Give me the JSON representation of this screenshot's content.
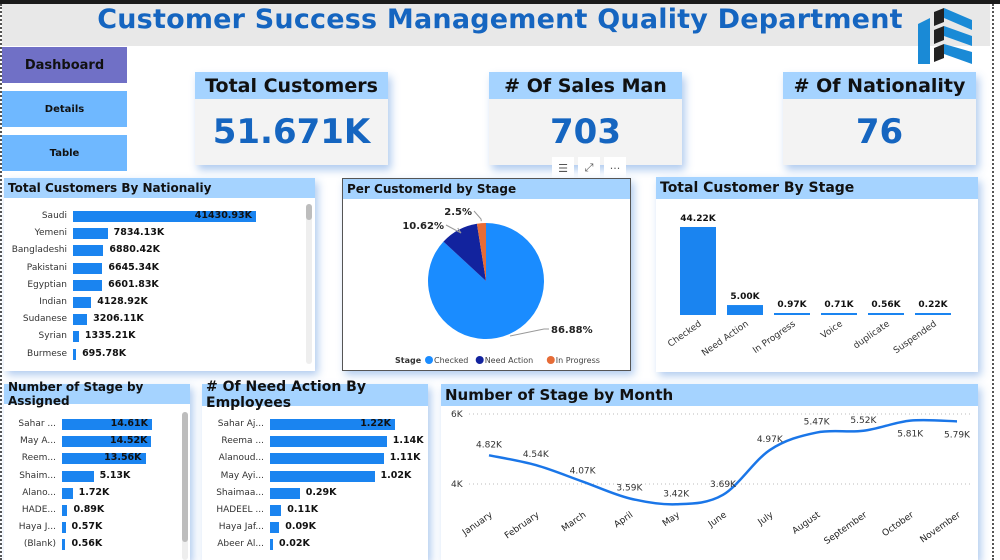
{
  "header": {
    "title": "Customer Success Management Quality Department",
    "logo_icon": "building-chevron-logo"
  },
  "nav": {
    "dashboard": "Dashboard",
    "details": "Details",
    "table": "Table"
  },
  "kpis": [
    {
      "label": "Total Customers",
      "value": "51.671K"
    },
    {
      "label": "# Of Sales Man",
      "value": "703"
    },
    {
      "label": "# Of Nationality",
      "value": "76"
    }
  ],
  "visual_toolbar": {
    "filter_icon": "filter-icon",
    "focus_icon": "focus-mode-icon",
    "more_icon": "more-options-icon",
    "filter_glyph": "☰",
    "focus_glyph": "⤢",
    "more_glyph": "···"
  },
  "chart_data": [
    {
      "id": "nationality",
      "type": "bar",
      "orientation": "horizontal",
      "title": "Total Customers By Nationaliy",
      "categories": [
        "Saudi",
        "Yemeni",
        "Bangladeshi",
        "Pakistani",
        "Egyptian",
        "Indian",
        "Sudanese",
        "Syrian",
        "Burmese"
      ],
      "values": [
        41430.93,
        7834.13,
        6880.42,
        6645.34,
        6601.83,
        4128.92,
        3206.11,
        1335.21,
        695.78
      ],
      "labels": [
        "41430.93K",
        "7834.13K",
        "6880.42K",
        "6645.34K",
        "6601.83K",
        "4128.92K",
        "3206.11K",
        "1335.21K",
        "695.78K"
      ],
      "unit": "K"
    },
    {
      "id": "stage_pie",
      "type": "pie",
      "title": "Per CustomerId by Stage",
      "legend_title": "Stage",
      "legend_position": "bottom",
      "categories": [
        "Checked",
        "Need Action",
        "In Progress"
      ],
      "values": [
        86.88,
        10.62,
        2.5
      ],
      "labels": [
        "86.88%",
        "10.62%",
        "2.5%"
      ],
      "colors": [
        "#1a8cff",
        "#12239e",
        "#e66c37"
      ]
    },
    {
      "id": "stage_column",
      "type": "bar",
      "orientation": "vertical",
      "title": "Total Customer By Stage",
      "categories": [
        "Checked",
        "Need Action",
        "In Progress",
        "Voice",
        "duplicate",
        "Suspended"
      ],
      "values": [
        44.22,
        5.0,
        0.97,
        0.71,
        0.56,
        0.22
      ],
      "labels": [
        "44.22K",
        "5.00K",
        "0.97K",
        "0.71K",
        "0.56K",
        "0.22K"
      ],
      "unit": "K"
    },
    {
      "id": "assigned",
      "type": "bar",
      "orientation": "horizontal",
      "title": "Number of Stage by Assigned",
      "categories": [
        "Sahar ...",
        "May A...",
        "Reem...",
        "Shaim...",
        "Alano...",
        "HADE...",
        "Haya J...",
        "(Blank)"
      ],
      "values": [
        14.61,
        14.52,
        13.56,
        5.13,
        1.72,
        0.89,
        0.57,
        0.56
      ],
      "labels": [
        "14.61K",
        "14.52K",
        "13.56K",
        "5.13K",
        "1.72K",
        "0.89K",
        "0.57K",
        "0.56K"
      ],
      "unit": "K"
    },
    {
      "id": "need_action",
      "type": "bar",
      "orientation": "horizontal",
      "title": "# Of Need Action By Employees",
      "categories": [
        "Sahar Aj...",
        "Reema ...",
        "Alanoud...",
        "May Ayi...",
        "Shaimaa...",
        "HADEEL ...",
        "Haya Jaf...",
        "Abeer Al..."
      ],
      "values": [
        1.22,
        1.14,
        1.11,
        1.02,
        0.29,
        0.11,
        0.09,
        0.02
      ],
      "labels": [
        "1.22K",
        "1.14K",
        "1.11K",
        "1.02K",
        "0.29K",
        "0.11K",
        "0.09K",
        "0.02K"
      ],
      "unit": "K"
    },
    {
      "id": "month_line",
      "type": "line",
      "title": "Number of Stage by Month",
      "categories": [
        "January",
        "February",
        "March",
        "April",
        "May",
        "June",
        "July",
        "August",
        "September",
        "October",
        "November"
      ],
      "values": [
        4.82,
        4.54,
        4.07,
        3.59,
        3.42,
        3.69,
        4.97,
        5.47,
        5.52,
        5.81,
        5.79
      ],
      "labels": [
        "4.82K",
        "4.54K",
        "4.07K",
        "3.59K",
        "3.42K",
        "3.69K",
        "4.97K",
        "5.47K",
        "5.52K",
        "5.81K",
        "5.79K"
      ],
      "yticks": [
        "4K",
        "6K"
      ],
      "ytick_values": [
        4,
        6
      ],
      "ylim": [
        2,
        6
      ],
      "grid": true,
      "unit": "K"
    }
  ]
}
